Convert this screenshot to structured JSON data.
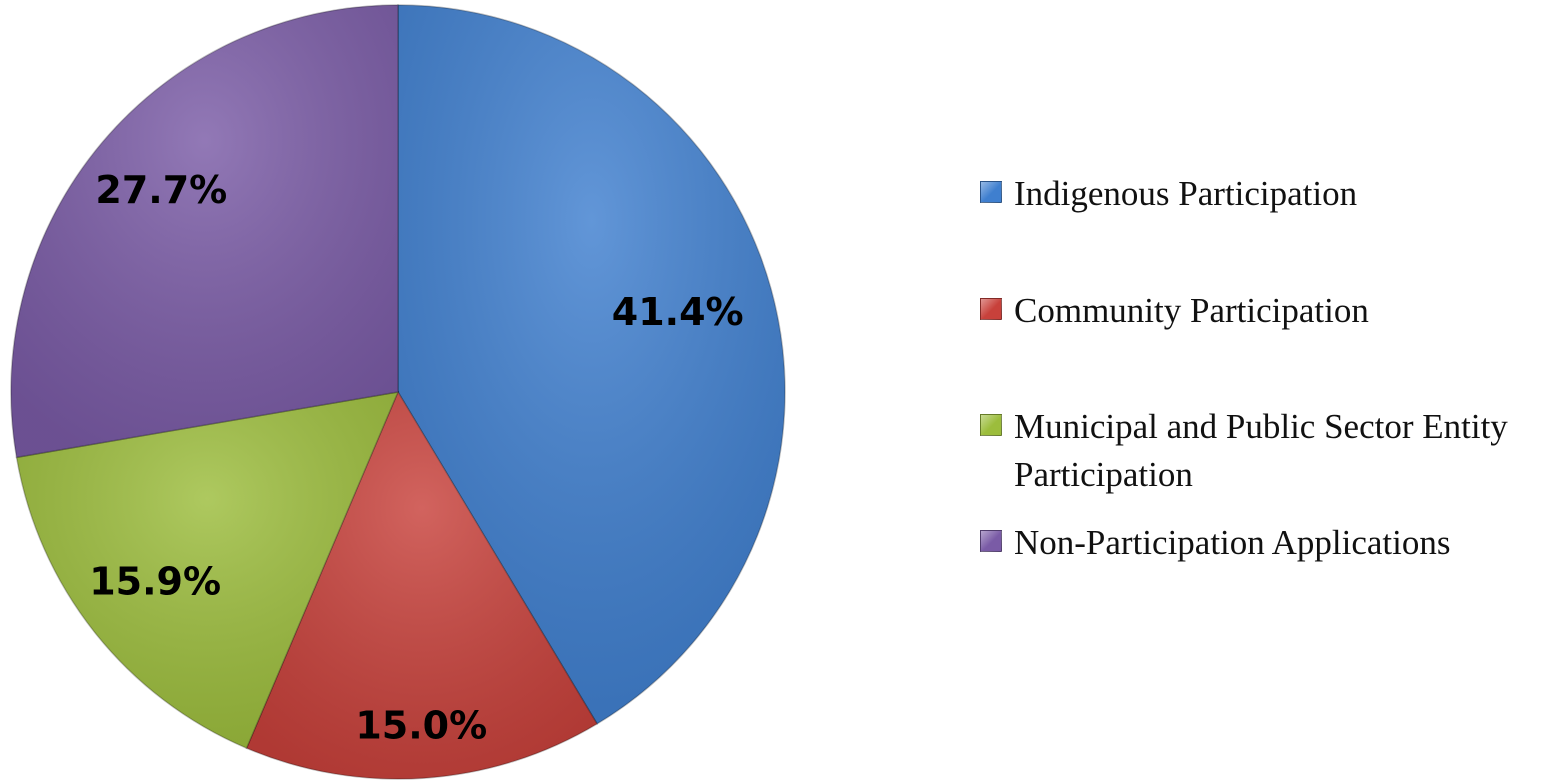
{
  "chart_data": {
    "type": "pie",
    "categories": [
      "Indigenous Participation",
      "Community Participation",
      "Municipal and Public Sector Entity Participation",
      "Non-Participation Applications"
    ],
    "values": [
      41.4,
      15.0,
      15.9,
      27.7
    ],
    "value_labels": [
      "41.4%",
      "15.0%",
      "15.9%",
      "27.7%"
    ],
    "colors": [
      "#3f7fcf",
      "#c8413b",
      "#9cbd3c",
      "#7a5ba6"
    ],
    "legend": "right"
  }
}
